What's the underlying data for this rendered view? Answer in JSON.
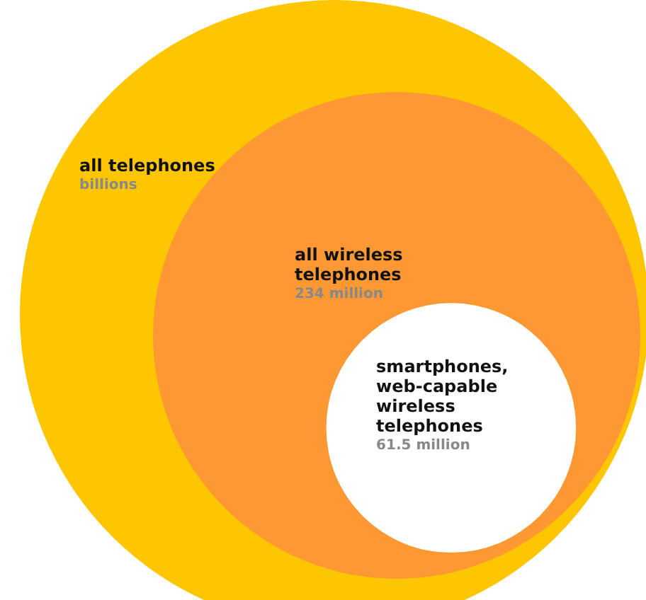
{
  "chart_data": {
    "type": "other",
    "categories": [
      "all telephones",
      "all wireless telephones",
      "smartphones, web-capable wireless telephones"
    ],
    "values": [
      null,
      234,
      61.5
    ],
    "value_labels": [
      "billions",
      "234 million",
      "61.5 million"
    ],
    "colors": [
      "#fec600",
      "#fd9833",
      "#ffffff"
    ]
  }
}
